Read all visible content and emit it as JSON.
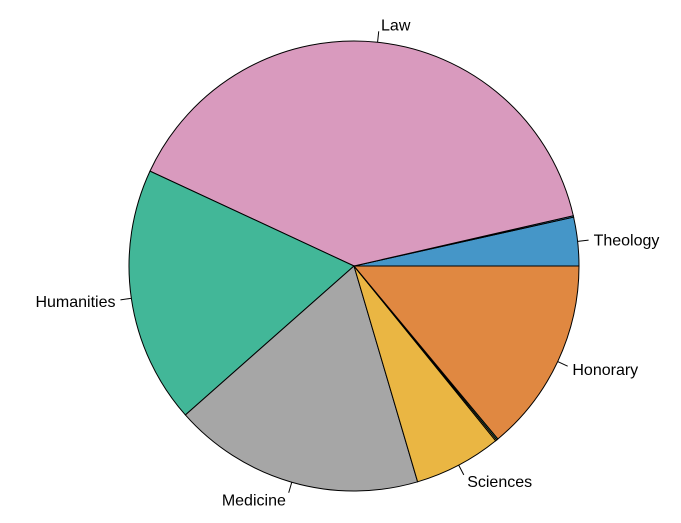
{
  "chart_data": {
    "type": "pie",
    "direction": "counterclockwise",
    "start_angle_deg": 0,
    "categories": [
      "Theology",
      "Law",
      "Humanities",
      "Medicine",
      "Sciences",
      "Honorary"
    ],
    "values": [
      3.5,
      39.6,
      18.5,
      18.1,
      6.3,
      14.0
    ],
    "colors": [
      "#4596C8",
      "#D99ABE",
      "#42B798",
      "#A6A6A6",
      "#EAB643",
      "#E08841"
    ],
    "thin_slivers": [
      {
        "after": "Theology",
        "value": 0.1,
        "color": "#4596C8"
      },
      {
        "after": "Sciences",
        "value": 0.1,
        "color": "#EAB643"
      },
      {
        "after": "Sciences",
        "value": 0.1,
        "color": "#42B798"
      }
    ],
    "title": "",
    "legend": "none",
    "labels_outside": true
  }
}
